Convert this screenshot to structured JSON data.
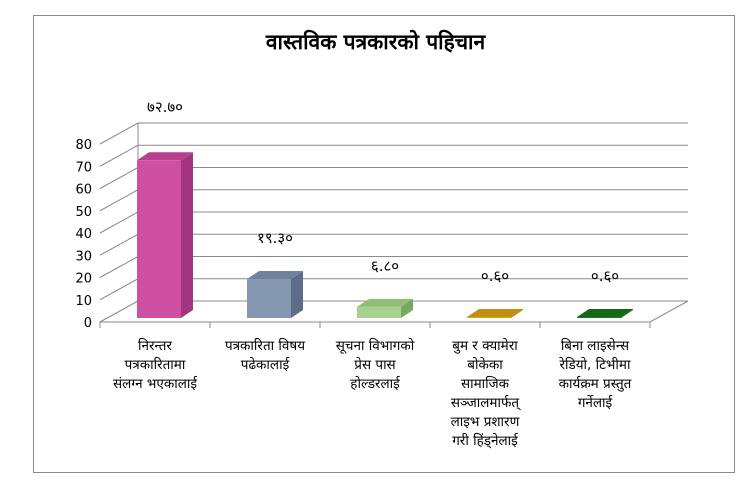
{
  "chart_data": {
    "type": "bar",
    "title": "वास्तविक पत्रकारको पहिचान",
    "categories": [
      [
        "निरन्तर",
        "पत्रकारितामा",
        "संलग्न भएकालाई"
      ],
      [
        "पत्रकारिता विषय",
        "पढेकालाई"
      ],
      [
        "सूचना विभागको",
        "प्रेस पास",
        "होल्डरलाई"
      ],
      [
        "बुम र क्यामेरा",
        "बोकेका",
        "सामाजिक",
        "सञ्जालमार्फत्",
        "लाइभ प्रशारण",
        "गरी हिंड्नेलाई"
      ],
      [
        "बिना लाइसेन्स",
        "रेडियो, टिभीमा",
        "कार्यक्रम प्रस्तुत",
        "गर्नेलाई"
      ]
    ],
    "values": [
      72.7,
      19.3,
      6.8,
      0.6,
      0.6
    ],
    "data_labels": [
      "७२.७०",
      "१९.३०",
      "६.८०",
      "०.६०",
      "०.६०"
    ],
    "ylim": [
      0,
      80
    ],
    "yticks": [
      "0",
      "10",
      "20",
      "30",
      "40",
      "50",
      "60",
      "70",
      "80"
    ],
    "grid": true,
    "legend": "none",
    "colors": [
      {
        "front": "#cf4fa3",
        "side": "#a33680",
        "top": "#b8418f"
      },
      {
        "front": "#8496b0",
        "side": "#5d6d86",
        "top": "#6f819c"
      },
      {
        "front": "#a9d18e",
        "side": "#7aa65f",
        "top": "#92bd76"
      },
      {
        "front": "#dca417",
        "side": "#a87c0f",
        "top": "#c08e12"
      },
      {
        "front": "#1f7a1f",
        "side": "#145a14",
        "top": "#186618"
      }
    ]
  }
}
